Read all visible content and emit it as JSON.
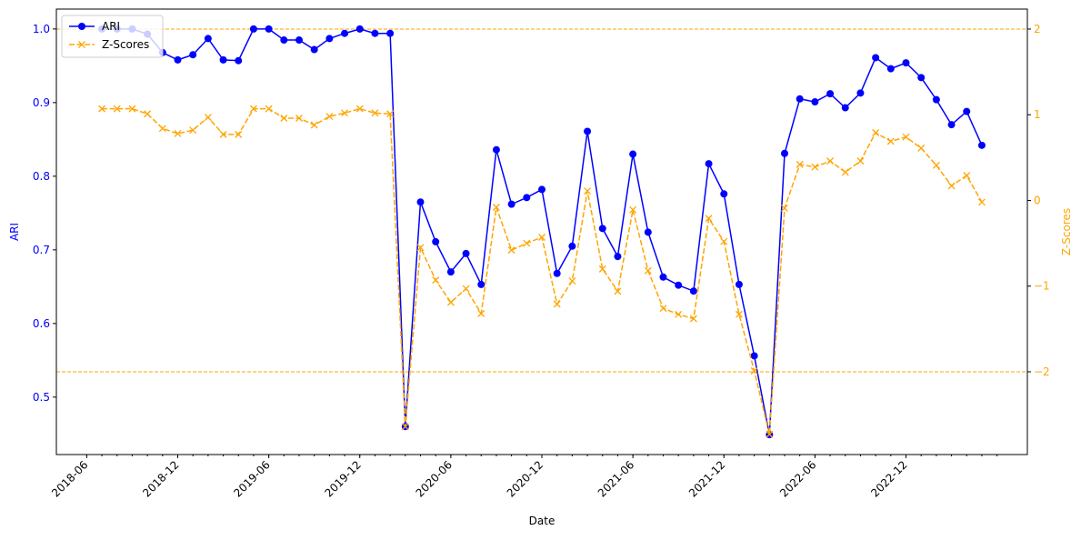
{
  "chart_data": {
    "type": "line",
    "xlabel": "Date",
    "ylabel": "ARI",
    "y2label": "Z-Scores",
    "x": [
      "2018-07",
      "2018-08",
      "2018-09",
      "2018-10",
      "2018-11",
      "2018-12",
      "2019-01",
      "2019-02",
      "2019-03",
      "2019-04",
      "2019-05",
      "2019-06",
      "2019-07",
      "2019-08",
      "2019-09",
      "2019-10",
      "2019-11",
      "2019-12",
      "2020-01",
      "2020-02",
      "2020-03",
      "2020-04",
      "2020-05",
      "2020-06",
      "2020-07",
      "2020-08",
      "2020-09",
      "2020-10",
      "2020-11",
      "2020-12",
      "2021-01",
      "2021-02",
      "2021-03",
      "2021-04",
      "2021-05",
      "2021-06",
      "2021-07",
      "2021-08",
      "2021-09",
      "2021-10",
      "2021-11",
      "2021-12",
      "2022-01",
      "2022-02",
      "2022-03",
      "2022-04",
      "2022-05",
      "2022-06",
      "2022-07",
      "2022-08",
      "2022-09",
      "2022-10",
      "2022-11",
      "2022-12",
      "2023-01",
      "2023-02",
      "2023-03",
      "2023-04",
      "2023-05"
    ],
    "series": [
      {
        "name": "ARI",
        "color": "#0000ff",
        "marker": "circle",
        "dashed": false,
        "values": [
          1.0,
          1.0,
          1.0,
          0.993,
          0.968,
          0.958,
          0.965,
          0.987,
          0.958,
          0.957,
          1.0,
          1.0,
          0.985,
          0.985,
          0.972,
          0.987,
          0.994,
          1.0,
          0.994,
          0.994,
          0.46,
          0.765,
          0.711,
          0.67,
          0.695,
          0.653,
          0.836,
          0.762,
          0.771,
          0.782,
          0.668,
          0.705,
          0.861,
          0.729,
          0.691,
          0.83,
          0.724,
          0.663,
          0.652,
          0.644,
          0.817,
          0.776,
          0.653,
          0.556,
          0.449,
          0.831,
          0.905,
          0.901,
          0.912,
          0.893,
          0.913,
          0.961,
          0.946,
          0.954,
          0.934,
          0.904,
          0.87,
          0.888,
          0.842
        ]
      },
      {
        "name": "Z-Scores",
        "color": "#ffa500",
        "marker": "x",
        "dashed": true,
        "axis": "y2",
        "values": [
          1.07,
          1.07,
          1.07,
          1.01,
          0.84,
          0.78,
          0.82,
          0.97,
          0.77,
          0.77,
          1.07,
          1.07,
          0.96,
          0.96,
          0.88,
          0.98,
          1.02,
          1.07,
          1.02,
          1.01,
          -2.64,
          -0.55,
          -0.93,
          -1.19,
          -1.03,
          -1.32,
          -0.08,
          -0.58,
          -0.5,
          -0.43,
          -1.21,
          -0.94,
          0.11,
          -0.8,
          -1.06,
          -0.11,
          -0.82,
          -1.26,
          -1.33,
          -1.38,
          -0.21,
          -0.48,
          -1.33,
          -1.99,
          -2.73,
          -0.09,
          0.42,
          0.39,
          0.46,
          0.33,
          0.46,
          0.79,
          0.69,
          0.74,
          0.61,
          0.41,
          0.17,
          0.29,
          -0.02
        ]
      }
    ],
    "thresholds": [
      2,
      -2
    ],
    "xlim": [
      "2018-04",
      "2023-08"
    ],
    "xticks": [
      "2018-06",
      "2018-12",
      "2019-06",
      "2019-12",
      "2020-06",
      "2020-12",
      "2021-06",
      "2021-12",
      "2022-06",
      "2022-12"
    ],
    "ylim": [
      0.422,
      1.027
    ],
    "yticks": [
      0.5,
      0.6,
      0.7,
      0.8,
      0.9,
      {
        "value": 1,
        "label": "1.0"
      }
    ],
    "y2lim": [
      -2.966,
      2.233
    ],
    "y2ticks": [
      {
        "value": -2,
        "label": "−2"
      },
      {
        "value": -1,
        "label": "−1"
      },
      0,
      1,
      2
    ],
    "legend": "upper left"
  }
}
